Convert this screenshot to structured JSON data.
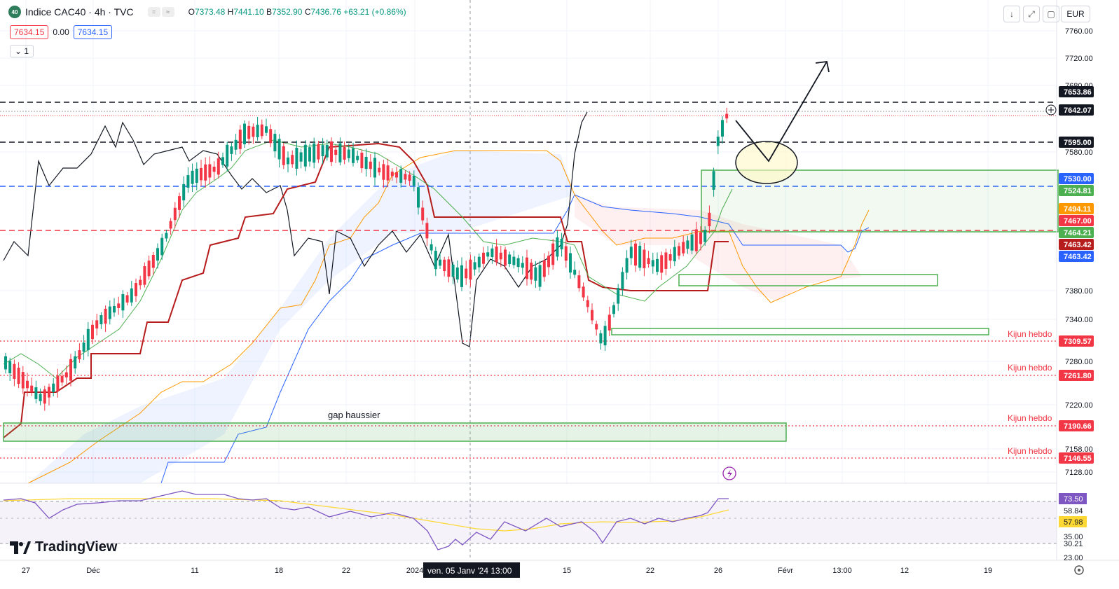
{
  "header": {
    "logo_text": "40",
    "title": "Indice CAC40 · 4h · TVC",
    "ohlc": [
      {
        "label": "O",
        "value": "7373.48"
      },
      {
        "label": "H",
        "value": "7441.10"
      },
      {
        "label": "B",
        "value": "7352.90"
      },
      {
        "label": "C",
        "value": "7436.76 +63.21 (+0.86%)"
      }
    ],
    "bid": "7634.15",
    "spread": "0.00",
    "ask": "7634.15",
    "interval": "1"
  },
  "toolbar": {
    "currency": "EUR"
  },
  "brand": {
    "name": "TradingView"
  },
  "colors": {
    "up": "#089981",
    "down": "#f23645",
    "kijun": "#b71c1c",
    "tenkan": "#4caf50",
    "span_a": "#ff9800",
    "span_b": "#2962ff"
  },
  "chart_data": {
    "type": "candlestick",
    "y_ticks": [
      "7760.00",
      "7720.00",
      "7680.00",
      "7580.00",
      "7380.00",
      "7340.00",
      "7280.00",
      "7220.00",
      "7158.00",
      "7128.00"
    ],
    "x_ticks": [
      "27",
      "Déc",
      "11",
      "18",
      "22",
      "2024",
      "15",
      "22",
      "26",
      "Févr",
      "13:00",
      "12",
      "19"
    ],
    "crosshair_label": "ven. 05 Janv '24   13:00",
    "price_labels": [
      {
        "value": "7653.86",
        "kind": "line"
      },
      {
        "value": "7642.07",
        "kind": "last"
      },
      {
        "value": "7595.00",
        "kind": "line"
      },
      {
        "value": "7530.00",
        "kind": "blue"
      },
      {
        "value": "7524.81",
        "kind": "green"
      },
      {
        "value": "7494.11",
        "kind": "orange"
      },
      {
        "value": "7467.00",
        "kind": "red"
      },
      {
        "value": "7464.21",
        "kind": "green"
      },
      {
        "value": "7463.42",
        "kind": "kijun"
      },
      {
        "value": "7463.42",
        "kind": "blue"
      },
      {
        "value": "7309.57",
        "kind": "red"
      },
      {
        "value": "7261.80",
        "kind": "red"
      },
      {
        "value": "7190.66",
        "kind": "red"
      },
      {
        "value": "7146.55",
        "kind": "red"
      }
    ],
    "annotations": [
      "Kijun hebdo",
      "Kijun hebdo",
      "Kijun hebdo",
      "Kijun hebdo",
      "gap haussier"
    ],
    "rsi": {
      "labels": [
        "73.50",
        "58.84",
        "57.98",
        "35.00",
        "30.21",
        "23.00"
      ]
    }
  }
}
